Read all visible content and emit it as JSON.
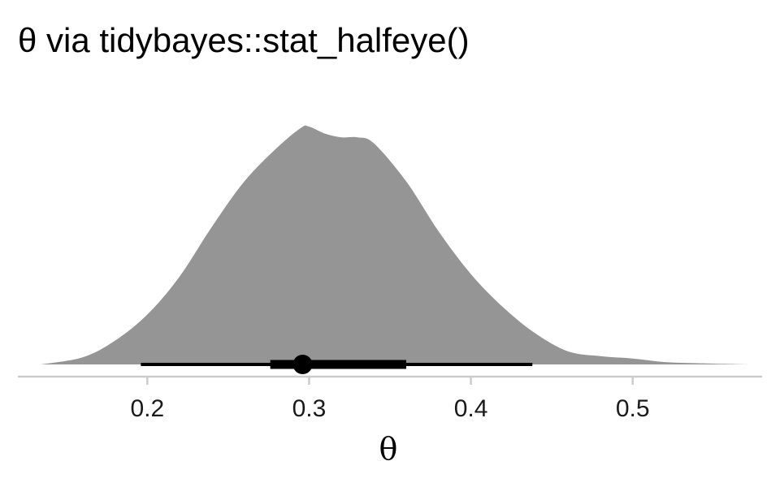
{
  "chart_data": {
    "type": "area",
    "title": "θ via tidybayes::stat_halfeye()",
    "xlabel": "θ",
    "ylabel": "",
    "xlim": [
      0.12,
      0.58
    ],
    "x_ticks": [
      0.2,
      0.3,
      0.4,
      0.5
    ],
    "x_tick_labels": [
      "0.2",
      "0.3",
      "0.4",
      "0.5"
    ],
    "grid": false,
    "density": {
      "x": [
        0.134,
        0.16,
        0.18,
        0.2,
        0.22,
        0.24,
        0.26,
        0.28,
        0.295,
        0.3,
        0.31,
        0.32,
        0.33,
        0.34,
        0.36,
        0.38,
        0.4,
        0.42,
        0.44,
        0.46,
        0.48,
        0.5,
        0.52,
        0.54,
        0.572
      ],
      "y": [
        0.0,
        0.03,
        0.1,
        0.21,
        0.37,
        0.58,
        0.77,
        0.91,
        0.995,
        1.0,
        0.97,
        0.955,
        0.955,
        0.93,
        0.77,
        0.56,
        0.38,
        0.24,
        0.13,
        0.055,
        0.035,
        0.025,
        0.01,
        0.005,
        0.0
      ]
    },
    "point_interval": {
      "point": 0.296,
      "interval_66": [
        0.276,
        0.36
      ],
      "interval_95": [
        0.196,
        0.438
      ]
    },
    "colors": {
      "density_fill": "#959595",
      "interval": "#000000",
      "axis_line": "#cccccc"
    }
  }
}
